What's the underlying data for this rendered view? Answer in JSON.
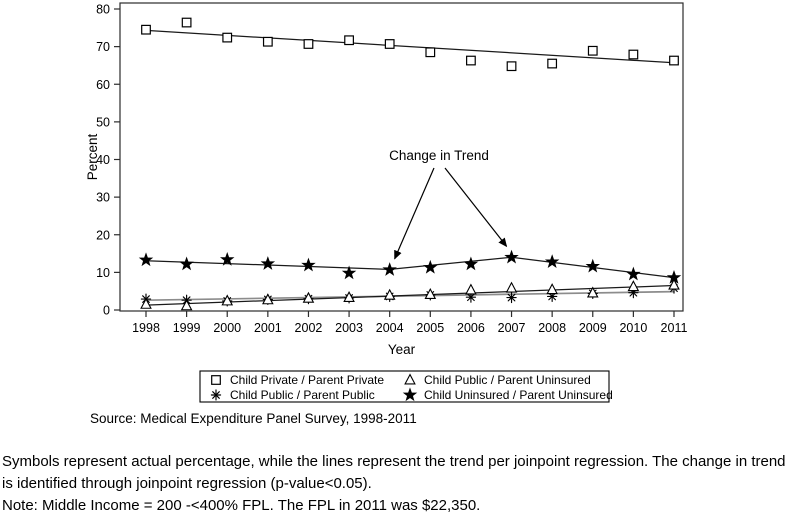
{
  "chart_data": {
    "type": "scatter",
    "title": "",
    "xlabel": "Year",
    "ylabel": "Percent",
    "x": [
      1998,
      1999,
      2000,
      2001,
      2002,
      2003,
      2004,
      2005,
      2006,
      2007,
      2008,
      2009,
      2010,
      2011
    ],
    "ylim": [
      0,
      80
    ],
    "yticks": [
      0,
      10,
      20,
      30,
      40,
      50,
      60,
      70,
      80
    ],
    "grid": false,
    "legend_position": "bottom-box",
    "series": [
      {
        "name": "Child Private / Parent Private",
        "marker": "open-square",
        "values": [
          74.5,
          76.4,
          72.4,
          71.3,
          70.7,
          71.7,
          70.7,
          68.5,
          66.3,
          64.8,
          65.5,
          68.9,
          67.9,
          66.3
        ],
        "trend": [
          [
            1998,
            74.3
          ],
          [
            2011,
            65.7
          ]
        ],
        "trend_color": "#1a1a1a"
      },
      {
        "name": "Child Public / Parent Public",
        "marker": "asterisk",
        "values": [
          2.9,
          2.6,
          2.4,
          2.8,
          3.0,
          3.2,
          3.6,
          4.0,
          3.4,
          3.3,
          3.6,
          4.4,
          4.6,
          5.8
        ],
        "trend": [
          [
            1998,
            2.6
          ],
          [
            2011,
            4.9
          ]
        ],
        "trend_color": "#8c8c8c"
      },
      {
        "name": "Child Public / Parent Uninsured",
        "marker": "open-triangle",
        "values": [
          1.5,
          1.1,
          2.4,
          2.7,
          3.1,
          3.3,
          3.9,
          4.1,
          5.3,
          5.8,
          5.4,
          4.5,
          6.2,
          6.6
        ],
        "trend": [
          [
            1998,
            1.3
          ],
          [
            2011,
            6.5
          ]
        ],
        "trend_color": "#1a1a1a"
      },
      {
        "name": "Child Uninsured / Parent Uninsured",
        "marker": "filled-star",
        "values": [
          13.3,
          12.2,
          13.4,
          12.3,
          11.9,
          9.8,
          10.7,
          11.3,
          12.2,
          14.0,
          12.8,
          11.6,
          9.5,
          8.6
        ],
        "trend": [
          [
            1998,
            13.1
          ],
          [
            2004,
            10.8
          ],
          [
            2007,
            14.0
          ],
          [
            2011,
            8.6
          ]
        ],
        "trend_color": "#1a1a1a"
      }
    ],
    "legend": [
      {
        "marker": "open-square",
        "label": "Child Private / Parent Private"
      },
      {
        "marker": "open-triangle",
        "label": "Child Public / Parent Uninsured"
      },
      {
        "marker": "asterisk",
        "label": "Child Public / Parent Public"
      },
      {
        "marker": "filled-star",
        "label": "Child Uninsured / Parent Uninsured"
      }
    ],
    "annotation": {
      "label": "Change in Trend",
      "targets": [
        {
          "year": 2004,
          "value": 10.7
        },
        {
          "year": 2007,
          "value": 14.0
        }
      ]
    }
  },
  "source": "Source: Medical Expenditure Panel Survey, 1998-2011",
  "notes": {
    "note1": "Symbols represent actual percentage, while the lines represent the trend per joinpoint regression. The change in trend is identified through joinpoint regression (p-value<0.05).",
    "note2": "Note: Middle Income = 200 -<400% FPL. The FPL in 2011 was $22,350."
  }
}
